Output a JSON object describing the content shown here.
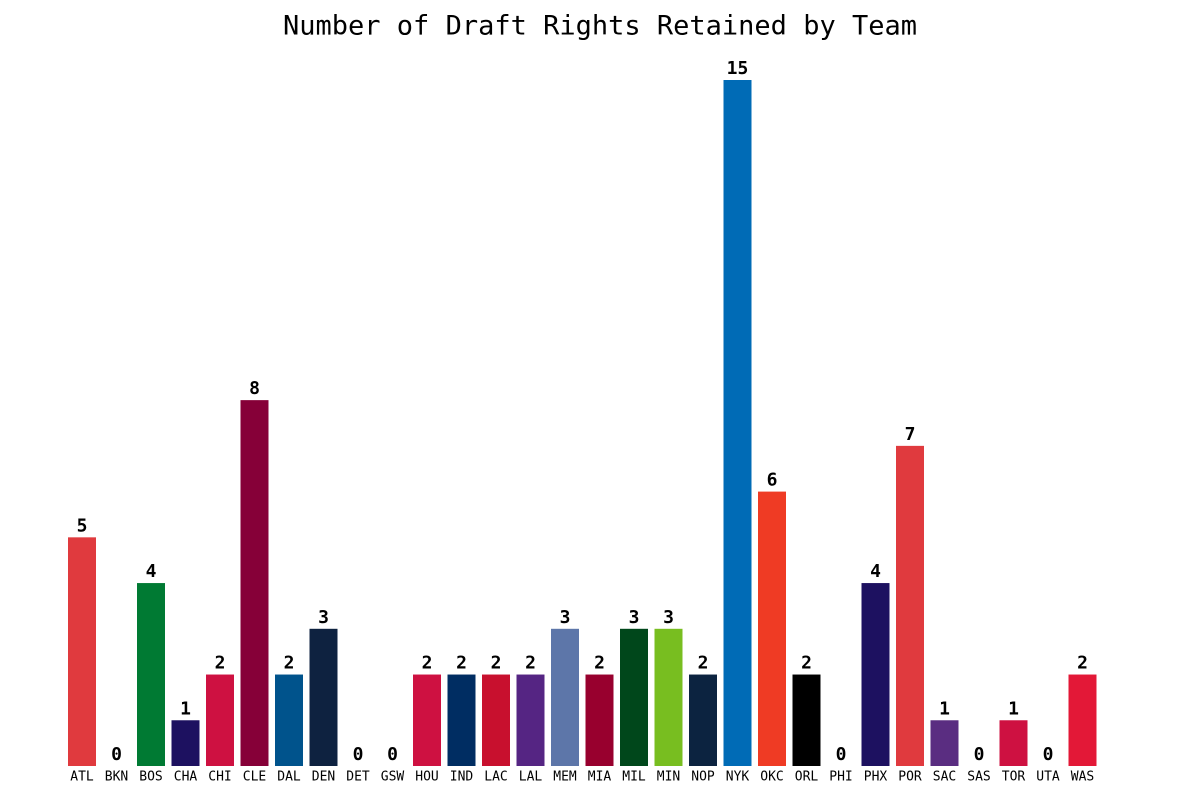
{
  "chart_data": {
    "type": "bar",
    "title": "Number of Draft Rights Retained by Team",
    "categories": [
      "ATL",
      "BKN",
      "BOS",
      "CHA",
      "CHI",
      "CLE",
      "DAL",
      "DEN",
      "DET",
      "GSW",
      "HOU",
      "IND",
      "LAC",
      "LAL",
      "MEM",
      "MIA",
      "MIL",
      "MIN",
      "NOP",
      "NYK",
      "OKC",
      "ORL",
      "PHI",
      "PHX",
      "POR",
      "SAC",
      "SAS",
      "TOR",
      "UTA",
      "WAS"
    ],
    "values": [
      5,
      0,
      4,
      1,
      2,
      8,
      2,
      3,
      0,
      0,
      2,
      2,
      2,
      2,
      3,
      2,
      3,
      3,
      2,
      15,
      6,
      2,
      0,
      4,
      7,
      1,
      0,
      1,
      0,
      2
    ],
    "colors": [
      "#E03A3E",
      "#000000",
      "#007A33",
      "#1D1160",
      "#CE1141",
      "#860038",
      "#00538C",
      "#0E2240",
      "#C8102E",
      "#1D428A",
      "#CE1141",
      "#002D62",
      "#C8102E",
      "#552583",
      "#5D76A9",
      "#98002E",
      "#00471B",
      "#78BE20",
      "#0C2340",
      "#006BB6",
      "#EF3B24",
      "#000000",
      "#006BB6",
      "#1D1160",
      "#E03A3E",
      "#5A2D81",
      "#C4CED4",
      "#CE1141",
      "#002B5C",
      "#E31837"
    ]
  }
}
